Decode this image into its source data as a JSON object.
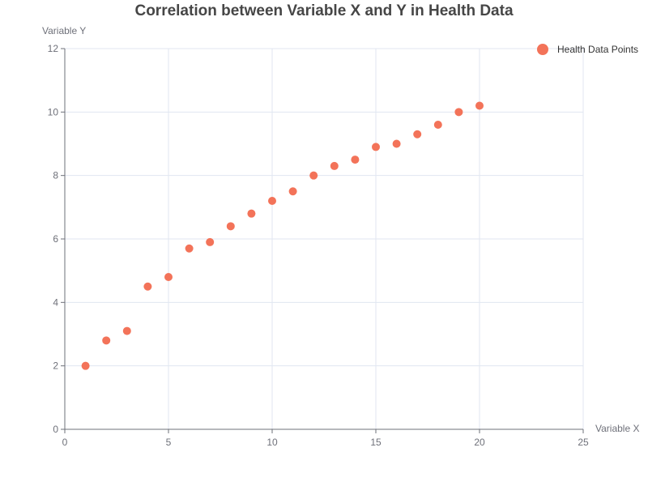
{
  "chart_data": {
    "type": "scatter",
    "title": "Correlation between Variable X and Y in Health Data",
    "xlabel": "Variable X",
    "ylabel": "Variable Y",
    "xlim": [
      0,
      25
    ],
    "ylim": [
      0,
      12
    ],
    "x_ticks": [
      0,
      5,
      10,
      15,
      20,
      25
    ],
    "y_ticks": [
      0,
      2,
      4,
      6,
      8,
      10,
      12
    ],
    "grid": true,
    "legend_position": "top-right",
    "series": [
      {
        "name": "Health Data Points",
        "color": "#f37359",
        "points": [
          {
            "x": 1,
            "y": 2.0
          },
          {
            "x": 2,
            "y": 2.8
          },
          {
            "x": 3,
            "y": 3.1
          },
          {
            "x": 4,
            "y": 4.5
          },
          {
            "x": 5,
            "y": 4.8
          },
          {
            "x": 6,
            "y": 5.7
          },
          {
            "x": 7,
            "y": 5.9
          },
          {
            "x": 8,
            "y": 6.4
          },
          {
            "x": 9,
            "y": 6.8
          },
          {
            "x": 10,
            "y": 7.2
          },
          {
            "x": 11,
            "y": 7.5
          },
          {
            "x": 12,
            "y": 8.0
          },
          {
            "x": 13,
            "y": 8.3
          },
          {
            "x": 14,
            "y": 8.5
          },
          {
            "x": 15,
            "y": 8.9
          },
          {
            "x": 16,
            "y": 9.0
          },
          {
            "x": 17,
            "y": 9.3
          },
          {
            "x": 18,
            "y": 9.6
          },
          {
            "x": 19,
            "y": 10.0
          },
          {
            "x": 20,
            "y": 10.2
          }
        ]
      }
    ]
  }
}
